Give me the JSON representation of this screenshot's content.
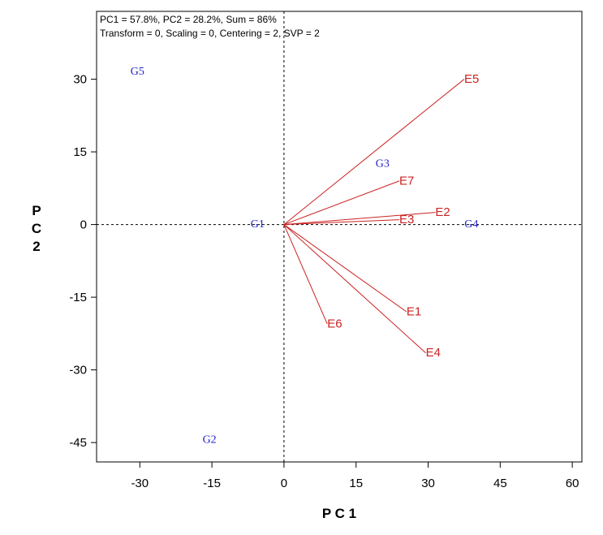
{
  "info": {
    "line1": "PC1 = 57.8%, PC2 = 28.2%, Sum = 86%",
    "line2": "Transform = 0, Scaling = 0, Centering = 2, SVP = 2"
  },
  "chart_data": {
    "type": "scatter",
    "subtype": "GGE biplot",
    "xlabel": "P C 1",
    "ylabel": "P C 2",
    "xlim": [
      -39,
      62
    ],
    "ylim": [
      -49,
      44
    ],
    "x_ticks": [
      -30,
      -15,
      0,
      15,
      30,
      45,
      60
    ],
    "y_ticks": [
      30,
      15,
      0,
      -15,
      -30,
      -45
    ],
    "reference_lines": {
      "x": 0,
      "y": 0,
      "style": "dashed"
    },
    "grid": false,
    "genotypes": {
      "color": "#2222cc",
      "points": [
        {
          "label": "G1",
          "x": -5.5,
          "y": 0
        },
        {
          "label": "G2",
          "x": -15.5,
          "y": -44.5
        },
        {
          "label": "G3",
          "x": 20.5,
          "y": 12.5
        },
        {
          "label": "G4",
          "x": 39,
          "y": 0
        },
        {
          "label": "G5",
          "x": -30.5,
          "y": 31.5
        }
      ]
    },
    "environments": {
      "color": "#cc2222",
      "vectors": [
        {
          "label": "E1",
          "x": 25.5,
          "y": -18
        },
        {
          "label": "E2",
          "x": 31.5,
          "y": 2.5
        },
        {
          "label": "E3",
          "x": 24,
          "y": 1
        },
        {
          "label": "E4",
          "x": 29.5,
          "y": -26.5
        },
        {
          "label": "E5",
          "x": 37.5,
          "y": 30
        },
        {
          "label": "E6",
          "x": 9,
          "y": -20.5
        },
        {
          "label": "E7",
          "x": 24,
          "y": 9
        }
      ]
    }
  }
}
